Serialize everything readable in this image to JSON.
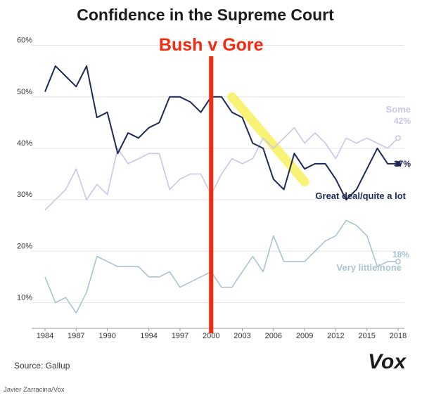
{
  "chart_data": {
    "type": "line",
    "title": "Confidence in the Supreme Court",
    "x_tick_labels": [
      "1984",
      "1987",
      "1990",
      "1994",
      "1997",
      "2000",
      "2003",
      "2006",
      "2009",
      "2012",
      "2015",
      "2018"
    ],
    "y_tick_labels": [
      "10%",
      "20%",
      "30%",
      "40%",
      "50%",
      "60%"
    ],
    "xlim": [
      1984,
      2018
    ],
    "ylim": [
      5,
      62
    ],
    "grid": true,
    "series": [
      {
        "name": "Great deal/quite a lot",
        "color": "#1e2a56",
        "end_label": "37%",
        "x": [
          1984,
          1985,
          1986,
          1987,
          1988,
          1989,
          1990,
          1991,
          1992,
          1993,
          1994,
          1995,
          1996,
          1997,
          1998,
          1999,
          2000,
          2001,
          2002,
          2003,
          2004,
          2005,
          2006,
          2007,
          2008,
          2009,
          2010,
          2011,
          2012,
          2013,
          2014,
          2015,
          2016,
          2017,
          2018
        ],
        "y": [
          51,
          56,
          54,
          52,
          56,
          46,
          47,
          39,
          43,
          42,
          44,
          45,
          50,
          50,
          49,
          47,
          50,
          50,
          47,
          46,
          41,
          40,
          34,
          32,
          39,
          36,
          37,
          37,
          34,
          30,
          32,
          36,
          40,
          37,
          37
        ]
      },
      {
        "name": "Some",
        "color": "#c9c6ea",
        "end_label": "42%",
        "x": [
          1984,
          1985,
          1986,
          1987,
          1988,
          1989,
          1990,
          1991,
          1992,
          1993,
          1994,
          1995,
          1996,
          1997,
          1998,
          1999,
          2000,
          2001,
          2002,
          2003,
          2004,
          2005,
          2006,
          2007,
          2008,
          2009,
          2010,
          2011,
          2012,
          2013,
          2014,
          2015,
          2016,
          2017,
          2018
        ],
        "y": [
          28,
          30,
          32,
          36,
          30,
          33,
          31,
          40,
          37,
          38,
          39,
          39,
          32,
          34,
          35,
          35,
          31,
          35,
          38,
          37,
          38,
          42,
          40,
          42,
          44,
          41,
          43,
          41,
          38,
          42,
          41,
          42,
          41,
          40,
          42
        ]
      },
      {
        "name": "Very little/none",
        "color": "#a9c5d0",
        "end_label": "18%",
        "x": [
          1984,
          1985,
          1986,
          1987,
          1988,
          1989,
          1990,
          1991,
          1992,
          1993,
          1994,
          1995,
          1996,
          1997,
          1998,
          1999,
          2000,
          2001,
          2002,
          2003,
          2004,
          2005,
          2006,
          2007,
          2008,
          2009,
          2010,
          2011,
          2012,
          2013,
          2014,
          2015,
          2016,
          2017,
          2018
        ],
        "y": [
          15,
          10,
          11,
          8,
          12,
          19,
          18,
          17,
          17,
          17,
          15,
          15,
          16,
          13,
          14,
          15,
          16,
          13,
          13,
          16,
          19,
          16,
          23,
          18,
          18,
          18,
          20,
          22,
          23,
          26,
          25,
          23,
          17,
          18,
          18
        ]
      }
    ],
    "annotations": [
      {
        "text": "Bush v Gore",
        "x": 2000.0,
        "color": "#f22a10"
      }
    ],
    "highlight": {
      "x": [
        2002,
        2009
      ],
      "y": [
        50,
        33.5
      ],
      "color": "#f7f25c"
    }
  },
  "footer": {
    "source": "Source: Gallup",
    "logo": "Vox",
    "credit": "Javier Zarracina/Vox"
  }
}
